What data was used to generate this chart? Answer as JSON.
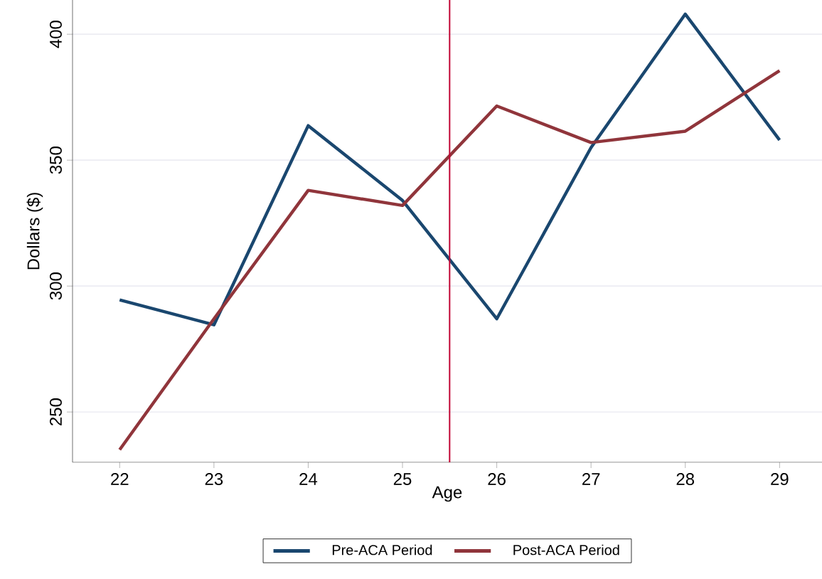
{
  "chart_data": {
    "type": "line",
    "xlabel": "Age",
    "ylabel": "Dollars ($)",
    "x": [
      22,
      23,
      24,
      25,
      26,
      27,
      28,
      29
    ],
    "series": [
      {
        "name": "Pre-ACA Period",
        "color": "#1a476f",
        "values": [
          294.5,
          284.6,
          363.7,
          334,
          287,
          355,
          408,
          358
        ]
      },
      {
        "name": "Post-ACA Period",
        "color": "#90353b",
        "values": [
          235,
          287,
          338,
          332,
          371.5,
          357,
          361.5,
          385.5
        ]
      }
    ],
    "xlim": [
      21.5,
      29.45
    ],
    "ylim": [
      230,
      413.6
    ],
    "xticks": [
      22,
      23,
      24,
      25,
      26,
      27,
      28,
      29
    ],
    "yticks": [
      250,
      300,
      350,
      400
    ],
    "ref_lines": [
      {
        "axis": "x",
        "value": 25.5,
        "color": "#c10534"
      }
    ],
    "grid": "y",
    "legend": "bottom",
    "marker": "none",
    "line_style": "solid"
  }
}
